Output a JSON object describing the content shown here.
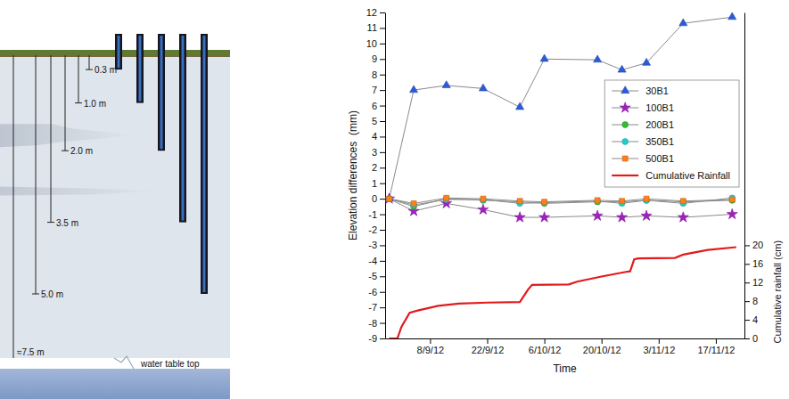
{
  "diagram": {
    "depths": [
      {
        "value": 0.3,
        "label": "0.3 m"
      },
      {
        "value": 1.0,
        "label": "1.0 m"
      },
      {
        "value": 2.0,
        "label": "2.0 m"
      },
      {
        "value": 3.5,
        "label": "3.5 m"
      },
      {
        "value": 5.0,
        "label": "5.0 m"
      }
    ],
    "water_table": {
      "value": 7.5,
      "label": "≈7.5 m",
      "text": "water table top"
    }
  },
  "chart_data": {
    "type": "line",
    "x_label": "Time",
    "y_label": "Elevation differences  (mm)",
    "y2_label": "Cumulative rainfall (cm)",
    "x": [
      "2012-08-29",
      "2012-09-04",
      "2012-09-12",
      "2012-09-21",
      "2012-09-30",
      "2012-10-06",
      "2012-10-19",
      "2012-10-25",
      "2012-10-31",
      "2012-11-09",
      "2012-11-21"
    ],
    "xlim": [
      "2012-08-28",
      "2012-11-24"
    ],
    "xticks": [
      {
        "value": "2012-09-08",
        "label": "8/9/12"
      },
      {
        "value": "2012-09-22",
        "label": "22/9/12"
      },
      {
        "value": "2012-10-06",
        "label": "6/10/12"
      },
      {
        "value": "2012-10-20",
        "label": "20/10/12"
      },
      {
        "value": "2012-11-03",
        "label": "3/11/12"
      },
      {
        "value": "2012-11-17",
        "label": "17/11/12"
      }
    ],
    "ylim": [
      -9,
      12
    ],
    "yticks": [
      -9,
      -8,
      -7,
      -6,
      -5,
      -4,
      -3,
      -2,
      -1,
      0,
      1,
      2,
      3,
      4,
      5,
      6,
      7,
      8,
      9,
      10,
      11,
      12
    ],
    "y2lim": [
      0,
      70
    ],
    "y2ticks": [
      0,
      4,
      8,
      12,
      16,
      20
    ],
    "legend": "upper right",
    "series": [
      {
        "name": "30B1",
        "color": "#2d5bd8",
        "marker": "triangle",
        "values": [
          0,
          7.0,
          7.3,
          7.1,
          5.9,
          9.0,
          8.95,
          8.3,
          8.75,
          11.3,
          11.7
        ]
      },
      {
        "name": "100B1",
        "color": "#a020c0",
        "marker": "star",
        "values": [
          0,
          -0.8,
          -0.3,
          -0.7,
          -1.2,
          -1.2,
          -1.1,
          -1.2,
          -1.1,
          -1.2,
          -1.0
        ]
      },
      {
        "name": "200B1",
        "color": "#33bb33",
        "marker": "circle",
        "values": [
          0,
          -0.5,
          0,
          -0.1,
          -0.2,
          -0.3,
          -0.2,
          -0.2,
          -0.1,
          -0.2,
          -0.1
        ]
      },
      {
        "name": "350B1",
        "color": "#22cccc",
        "marker": "circle",
        "values": [
          0,
          -0.4,
          -0.05,
          -0.05,
          -0.3,
          -0.25,
          -0.15,
          -0.3,
          -0.1,
          -0.3,
          0.05
        ]
      },
      {
        "name": "500B1",
        "color": "#ff7f1a",
        "marker": "square",
        "values": [
          0,
          -0.3,
          0.05,
          0,
          -0.15,
          -0.2,
          -0.1,
          -0.15,
          0,
          -0.15,
          -0.05
        ]
      },
      {
        "name": "Cumulative Rainfall",
        "color": "#e31a1c",
        "type": "line",
        "axis": "y2",
        "x": [
          "2012-08-29",
          "2012-08-31",
          "2012-09-01",
          "2012-09-03",
          "2012-09-05",
          "2012-09-10",
          "2012-09-15",
          "2012-09-22",
          "2012-09-30",
          "2012-10-02",
          "2012-10-03",
          "2012-10-12",
          "2012-10-14",
          "2012-10-20",
          "2012-10-26",
          "2012-10-27",
          "2012-10-28",
          "2012-10-29",
          "2012-11-07",
          "2012-11-09",
          "2012-11-15",
          "2012-11-22"
        ],
        "values": [
          0,
          0,
          2.5,
          5.5,
          6.0,
          7.0,
          7.5,
          7.7,
          7.8,
          10.5,
          11.5,
          11.6,
          12.2,
          13.3,
          14.3,
          14.4,
          17.0,
          17.2,
          17.3,
          18.0,
          19.0,
          19.6
        ]
      }
    ]
  }
}
